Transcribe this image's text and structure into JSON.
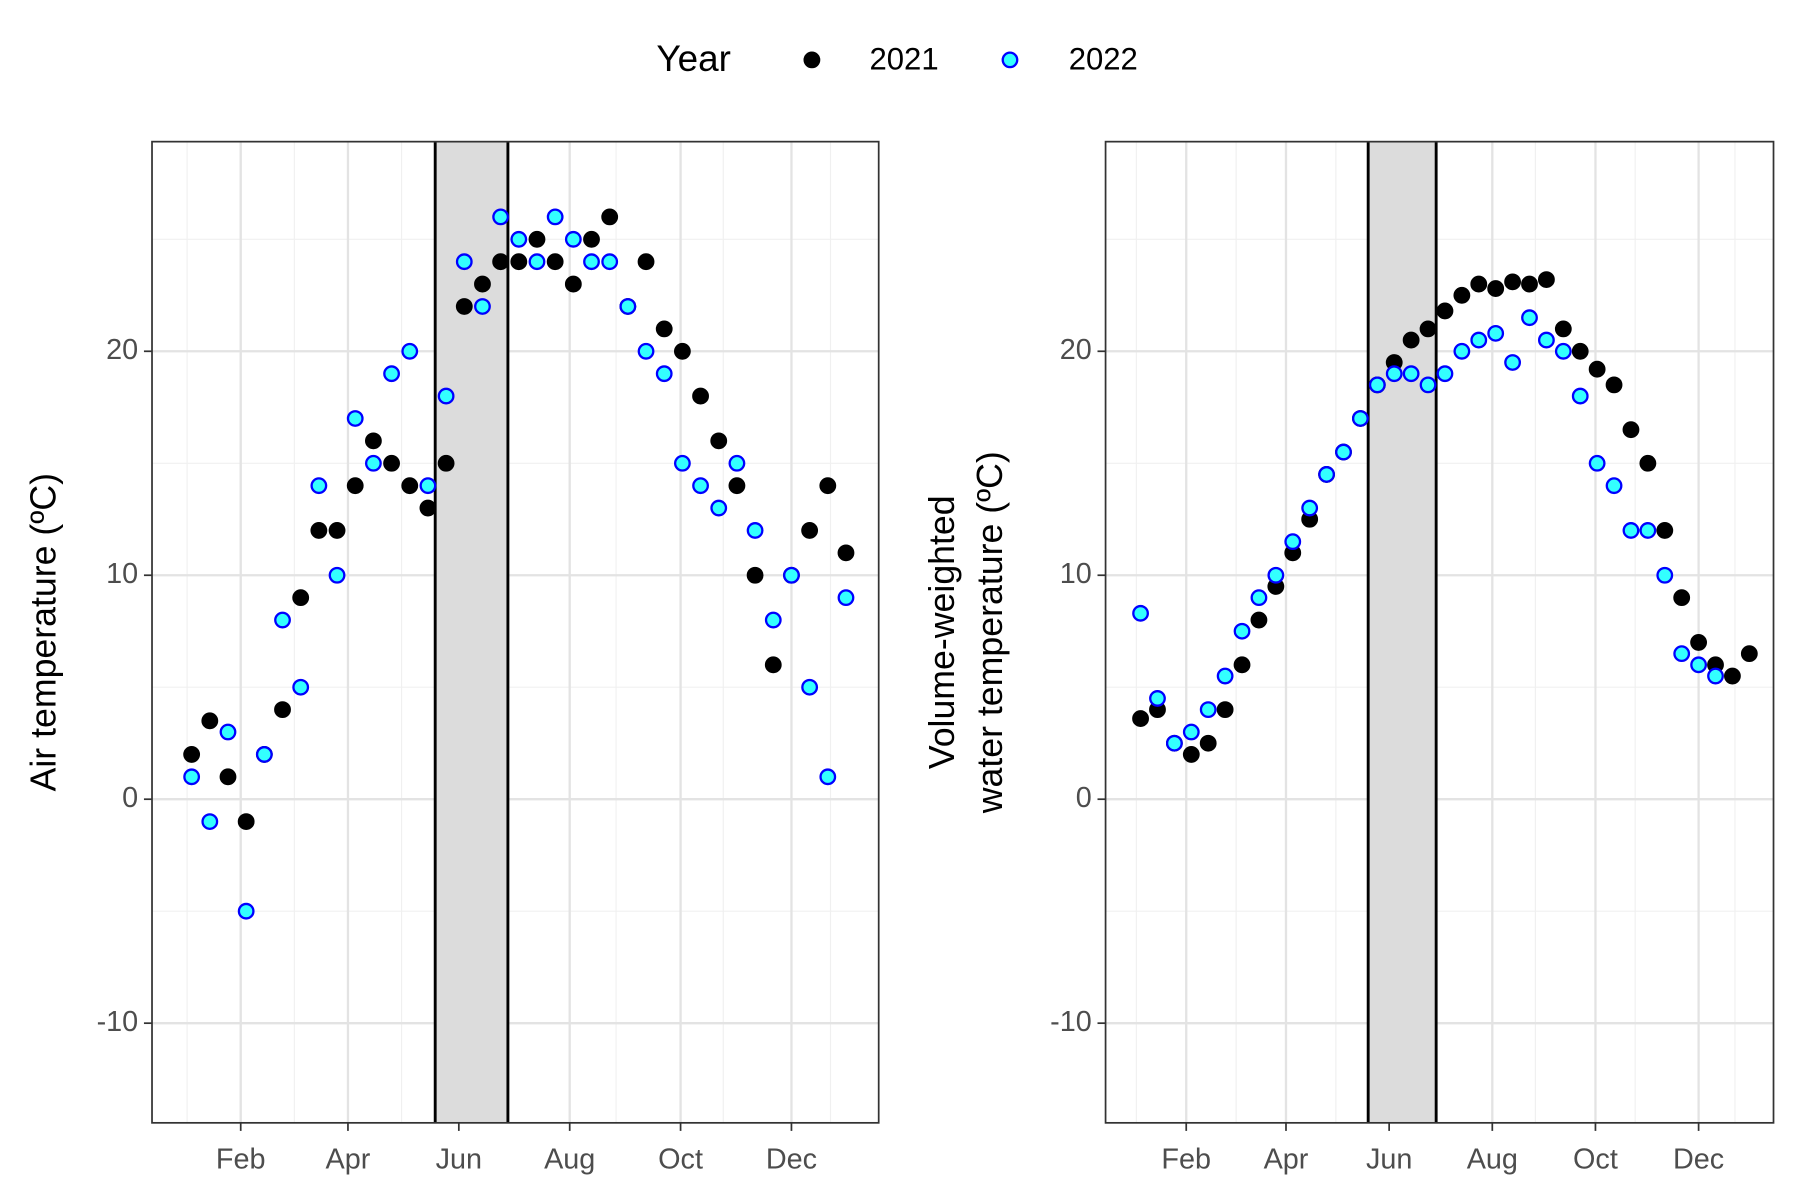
{
  "chart_data": [
    {
      "type": "scatter",
      "ylabel": [
        "Air temperature (ºC)"
      ],
      "legend_title": "Year",
      "legend": "top",
      "x": [
        5,
        15,
        25,
        35,
        45,
        55,
        65,
        75,
        85,
        95,
        105,
        115,
        125,
        135,
        145,
        155,
        165,
        175,
        185,
        195,
        205,
        215,
        225,
        235,
        245,
        255,
        265,
        275,
        285,
        295,
        305,
        315,
        325,
        335,
        345,
        355,
        365
      ],
      "series": [
        {
          "name": "2021",
          "color": "#000000",
          "edgecolor": "#000000",
          "values": [
            2,
            3.5,
            1,
            -1,
            2,
            4,
            9,
            12,
            12,
            14,
            16,
            15,
            14,
            13,
            15,
            22,
            23,
            24,
            24,
            25,
            24,
            23,
            25,
            26,
            22,
            24,
            21,
            20,
            18,
            16,
            14,
            10,
            6,
            10,
            12,
            14,
            11
          ]
        },
        {
          "name": "2022",
          "color": "#33ffff",
          "edgecolor": "#0000ff",
          "values": [
            1,
            -1,
            3,
            -5,
            2,
            8,
            5,
            14,
            10,
            17,
            15,
            19,
            20,
            14,
            18,
            24,
            22,
            26,
            25,
            24,
            26,
            25,
            24,
            24,
            22,
            20,
            19,
            15,
            14,
            13,
            15,
            12,
            8,
            10,
            5,
            1,
            9
          ]
        }
      ],
      "xlim": [
        -16.8,
        383
      ],
      "xticks": [
        {
          "value": 32,
          "label": "Feb"
        },
        {
          "value": 91,
          "label": "Apr"
        },
        {
          "value": 152,
          "label": "Jun"
        },
        {
          "value": 213,
          "label": "Aug"
        },
        {
          "value": 274,
          "label": "Oct"
        },
        {
          "value": 335,
          "label": "Dec"
        }
      ],
      "ylim": [
        -14.45,
        29.36
      ],
      "yticks": [
        -10,
        0,
        10,
        20
      ],
      "grid": true,
      "shade": [
        139,
        179
      ]
    },
    {
      "type": "scatter",
      "ylabel": [
        "Volume-weighted",
        "water temperature (ºC)"
      ],
      "x": [
        5,
        15,
        25,
        35,
        45,
        55,
        65,
        75,
        85,
        95,
        105,
        115,
        125,
        135,
        145,
        155,
        165,
        175,
        185,
        195,
        205,
        215,
        225,
        235,
        245,
        255,
        265,
        275,
        285,
        295,
        305,
        315,
        325,
        335,
        345,
        355,
        365
      ],
      "series": [
        {
          "name": "2021",
          "color": "#000000",
          "edgecolor": "#000000",
          "values": [
            3.6,
            4,
            2.5,
            2,
            2.5,
            4,
            6,
            8,
            9.5,
            11,
            12.5,
            14.5,
            15.5,
            17,
            18.5,
            19.5,
            20.5,
            21,
            21.8,
            22.5,
            23,
            22.8,
            23.1,
            23,
            23.2,
            21,
            20,
            19.2,
            18.5,
            16.5,
            15,
            12,
            9,
            7,
            6,
            5.5,
            6.5
          ]
        },
        {
          "name": "2022",
          "color": "#33ffff",
          "edgecolor": "#0000ff",
          "values": [
            8.3,
            4.5,
            2.5,
            3,
            4,
            5.5,
            7.5,
            9,
            10,
            11.5,
            13,
            14.5,
            15.5,
            17,
            18.5,
            19,
            19,
            18.5,
            19,
            20,
            20.5,
            20.8,
            19.5,
            21.5,
            20.5,
            20,
            18,
            15,
            14,
            12,
            12,
            10,
            6.5,
            6,
            5.5,
            null,
            null
          ]
        }
      ],
      "xlim": [
        -15.7,
        379.3
      ],
      "xticks": [
        {
          "value": 32,
          "label": "Feb"
        },
        {
          "value": 91,
          "label": "Apr"
        },
        {
          "value": 152,
          "label": "Jun"
        },
        {
          "value": 213,
          "label": "Aug"
        },
        {
          "value": 274,
          "label": "Oct"
        },
        {
          "value": 335,
          "label": "Dec"
        }
      ],
      "ylim": [
        -14.45,
        29.36
      ],
      "yticks": [
        -10,
        0,
        10,
        20
      ],
      "grid": true,
      "shade": [
        139.6,
        179.8
      ]
    }
  ]
}
